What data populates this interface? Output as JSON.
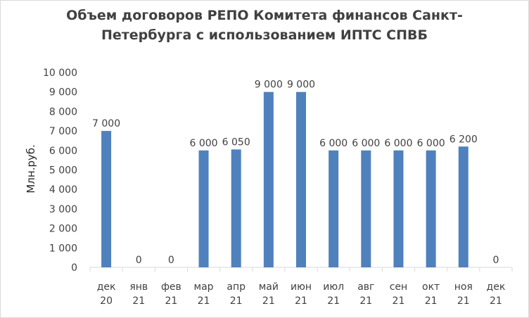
{
  "chart_data": {
    "type": "bar",
    "title": "Объем договоров  РЕПО Комитета финансов Санкт-\nПетербурга с использованием ИПТС СПВБ",
    "ylabel": "Млн.руб.",
    "xlabel": "",
    "ylim": [
      0,
      10000
    ],
    "yticks": [
      "0",
      "1 000",
      "2 000",
      "3 000",
      "4 000",
      "5 000",
      "6 000",
      "7 000",
      "8 000",
      "9 000",
      "10 000"
    ],
    "categories": [
      [
        "дек",
        "20"
      ],
      [
        "янв",
        "21"
      ],
      [
        "фев",
        "21"
      ],
      [
        "мар",
        "21"
      ],
      [
        "апр",
        "21"
      ],
      [
        "май",
        "21"
      ],
      [
        "июн",
        "21"
      ],
      [
        "июл",
        "21"
      ],
      [
        "авг",
        "21"
      ],
      [
        "сен",
        "21"
      ],
      [
        "окт",
        "21"
      ],
      [
        "ноя",
        "21"
      ],
      [
        "дек",
        "21"
      ]
    ],
    "values": [
      7000,
      0,
      0,
      6000,
      6050,
      9000,
      9000,
      6000,
      6000,
      6000,
      6000,
      6200,
      0
    ],
    "data_labels": [
      "7 000",
      "0",
      "0",
      "6 000",
      "6 050",
      "9 000",
      "9 000",
      "6 000",
      "6 000",
      "6 000",
      "6 000",
      "6 200",
      "0"
    ],
    "grid": false,
    "legend": "none",
    "bar_color": "#4f81bd"
  }
}
